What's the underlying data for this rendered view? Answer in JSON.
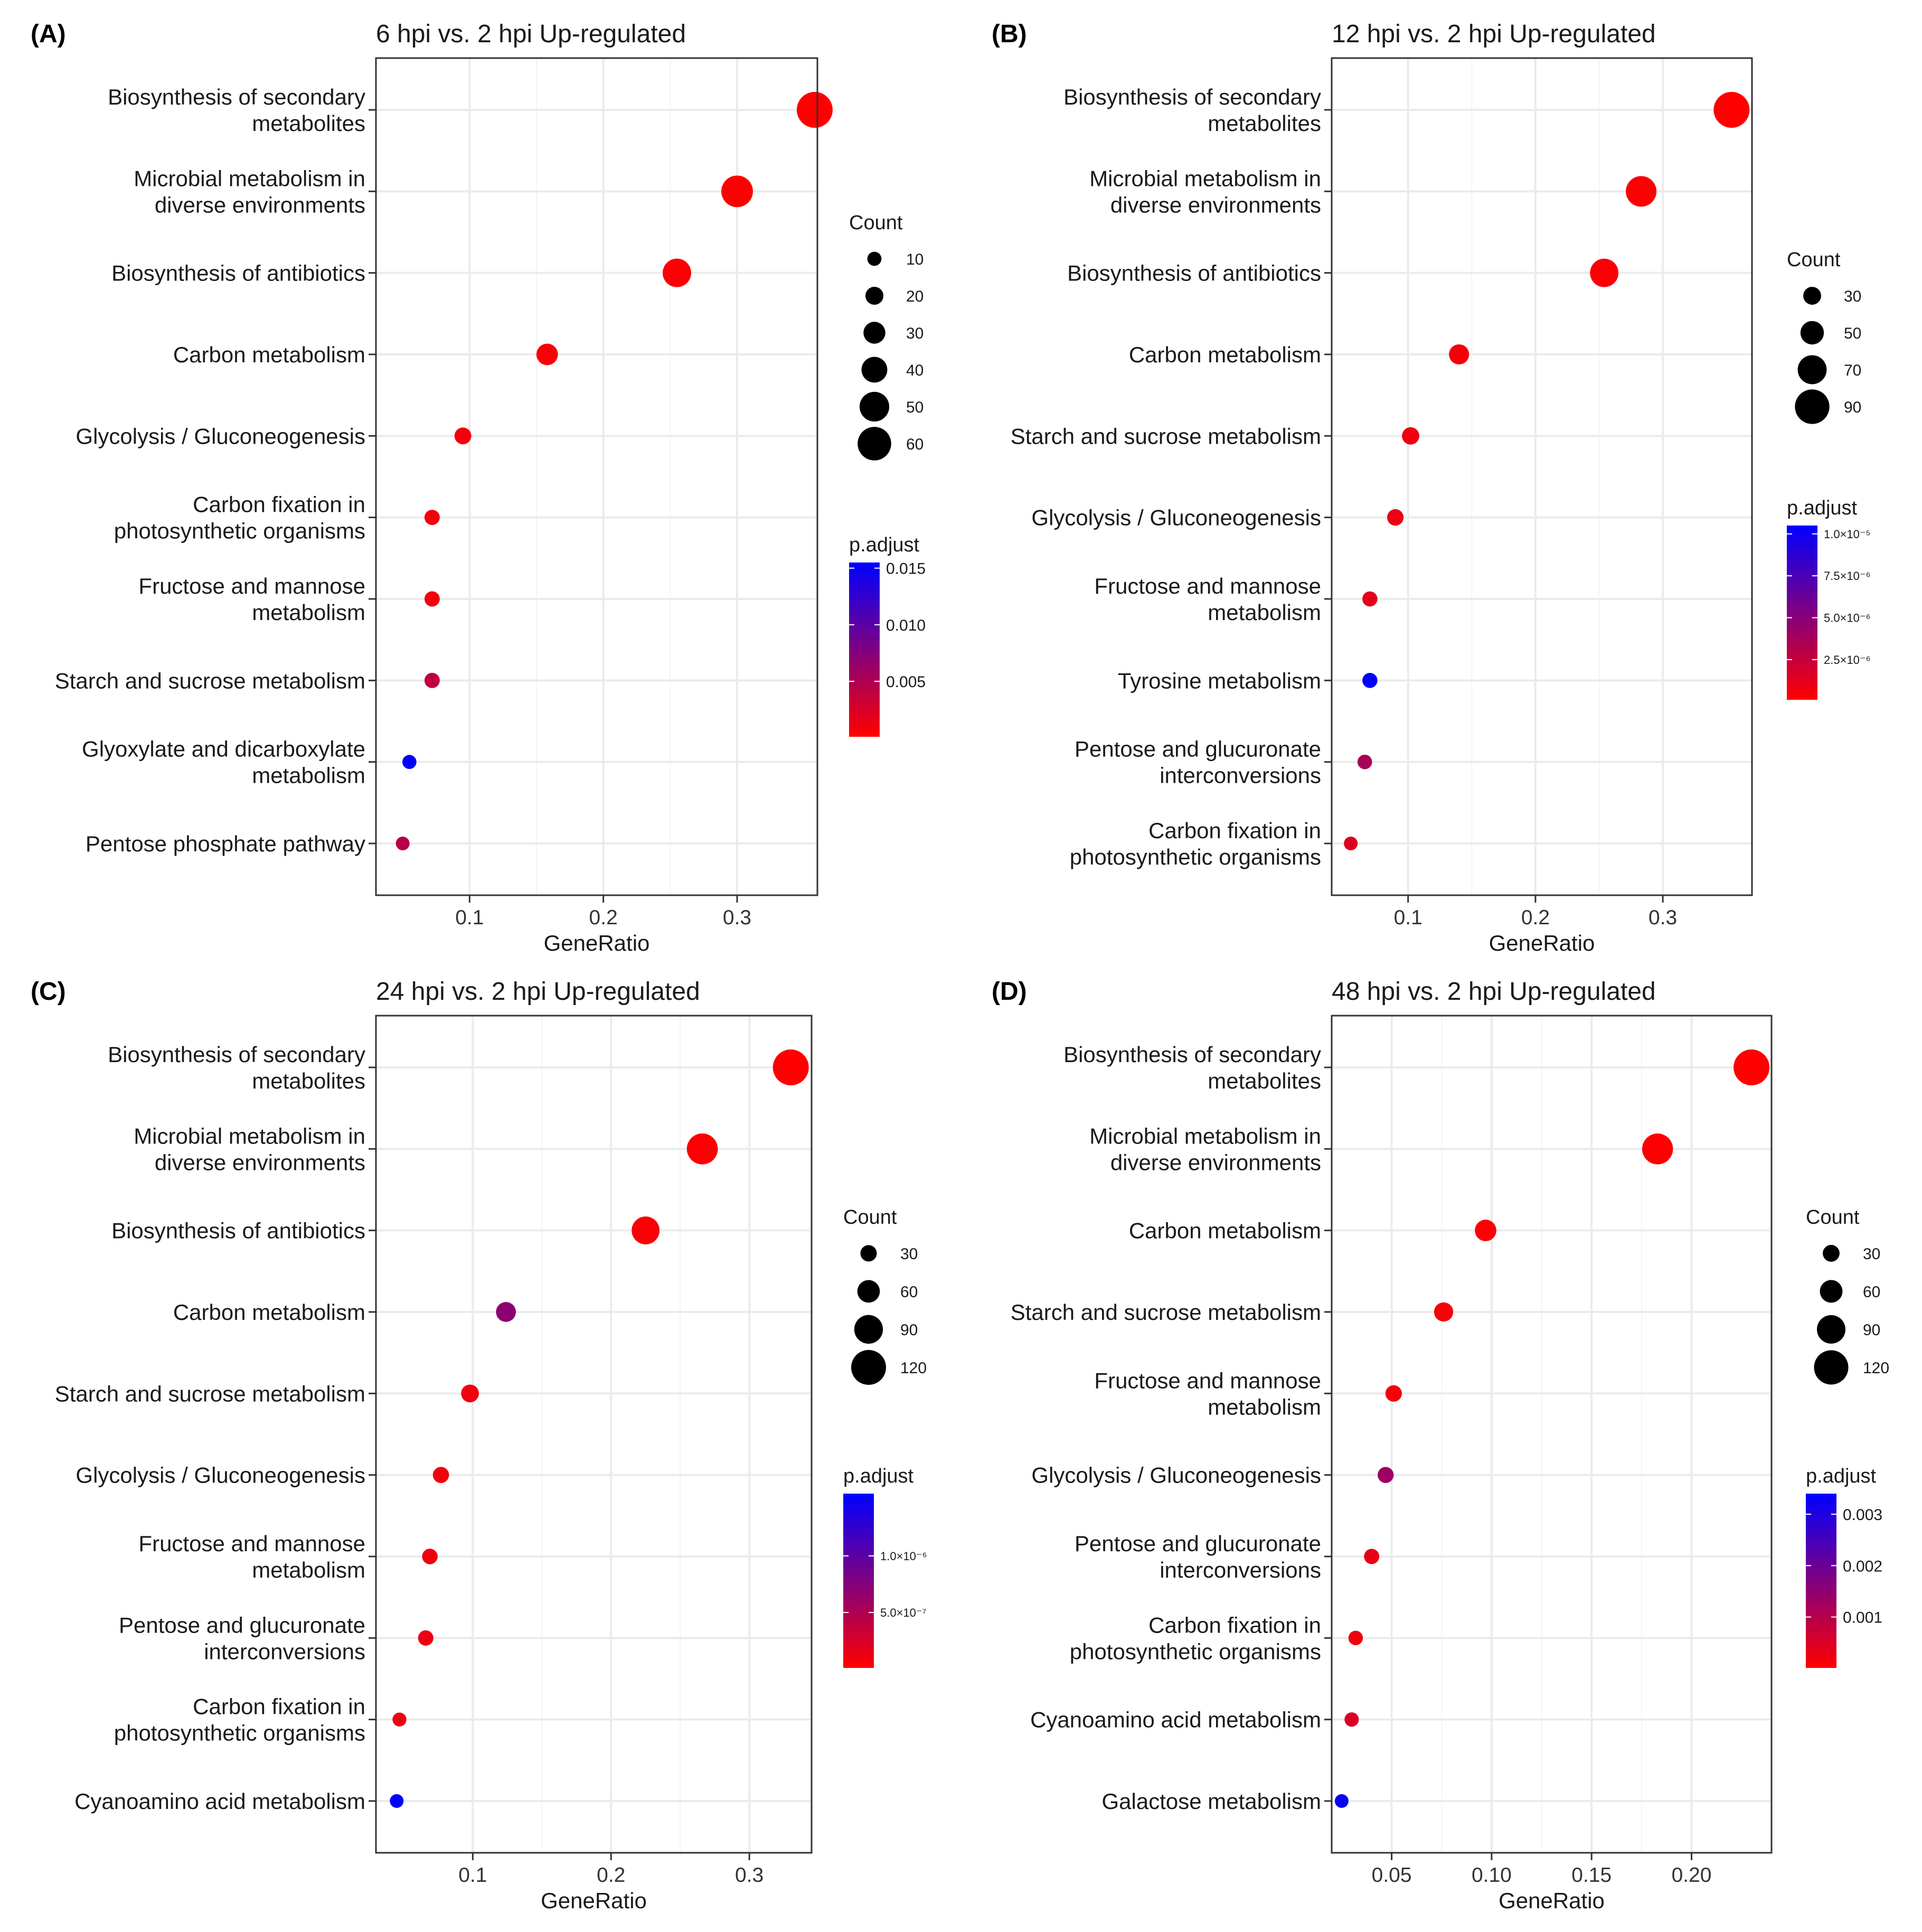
{
  "colors": {
    "low": "#ff0000",
    "high": "#0000ff",
    "grid": "#ebebeb",
    "border": "#333333"
  },
  "chart_data": [
    {
      "type": "scatter",
      "panel_label": "(A)",
      "title": "6 hpi vs. 2 hpi Up-regulated",
      "xlabel": "GeneRatio",
      "ylabel": "",
      "xlim": [
        0.03,
        0.36
      ],
      "xticks": [
        0.1,
        0.2,
        0.3
      ],
      "xtick_labels": [
        "0.1",
        "0.2",
        "0.3"
      ],
      "categories": [
        [
          "Biosynthesis of secondary",
          "metabolites"
        ],
        [
          "Microbial metabolism in",
          "diverse environments"
        ],
        [
          "Biosynthesis of antibiotics"
        ],
        [
          "Carbon metabolism"
        ],
        [
          "Glycolysis / Gluconeogenesis"
        ],
        [
          "Carbon fixation in",
          "photosynthetic organisms"
        ],
        [
          "Fructose and mannose",
          "metabolism"
        ],
        [
          "Starch and sucrose metabolism"
        ],
        [
          "Glyoxylate and dicarboxylate",
          "metabolism"
        ],
        [
          "Pentose phosphate pathway"
        ]
      ],
      "x": [
        0.358,
        0.3,
        0.255,
        0.158,
        0.095,
        0.072,
        0.072,
        0.072,
        0.055,
        0.05
      ],
      "count": [
        66,
        55,
        47,
        29,
        17,
        13,
        13,
        13,
        10,
        9
      ],
      "p_adjust": [
        0.0001,
        0.0002,
        0.0003,
        0.0004,
        0.0007,
        0.0008,
        0.0008,
        0.004,
        0.0155,
        0.0045
      ],
      "legend": {
        "size_title": "Count",
        "size_values": [
          10,
          20,
          30,
          40,
          50,
          60
        ],
        "size_labels": [
          "10",
          "20",
          "30",
          "40",
          "50",
          "60"
        ],
        "color_title": "p.adjust",
        "color_range": [
          0.0001,
          0.0155
        ],
        "color_ticks": [
          0.015,
          0.01,
          0.005
        ],
        "color_tick_labels": [
          "0.015",
          "0.010",
          "0.005"
        ]
      }
    },
    {
      "type": "scatter",
      "panel_label": "(B)",
      "title": "12 hpi vs. 2 hpi Up-regulated",
      "xlabel": "GeneRatio",
      "ylabel": "",
      "xlim": [
        0.04,
        0.37
      ],
      "xticks": [
        0.1,
        0.2,
        0.3
      ],
      "xtick_labels": [
        "0.1",
        "0.2",
        "0.3"
      ],
      "categories": [
        [
          "Biosynthesis of secondary",
          "metabolites"
        ],
        [
          "Microbial metabolism in",
          "diverse environments"
        ],
        [
          "Biosynthesis of antibiotics"
        ],
        [
          "Carbon metabolism"
        ],
        [
          "Starch and sucrose metabolism"
        ],
        [
          "Glycolysis / Gluconeogenesis"
        ],
        [
          "Fructose and mannose",
          "metabolism"
        ],
        [
          "Tyrosine metabolism"
        ],
        [
          "Pentose and glucuronate",
          "interconversions"
        ],
        [
          "Carbon fixation in",
          "photosynthetic organisms"
        ]
      ],
      "x": [
        0.354,
        0.283,
        0.254,
        0.14,
        0.102,
        0.09,
        0.07,
        0.07,
        0.066,
        0.055
      ],
      "count": [
        95,
        76,
        68,
        38,
        28,
        25,
        20,
        20,
        18,
        15
      ],
      "p_adjust": [
        1e-07,
        2e-07,
        3e-07,
        5e-07,
        8e-07,
        9e-07,
        1.2e-06,
        1.05e-05,
        3.7e-06,
        1.5e-06
      ],
      "legend": {
        "size_title": "Count",
        "size_values": [
          30,
          50,
          70,
          90
        ],
        "size_labels": [
          "30",
          "50",
          "70",
          "90"
        ],
        "color_title": "p.adjust",
        "color_range": [
          1e-07,
          1.05e-05
        ],
        "color_ticks": [
          1e-05,
          7.5e-06,
          5e-06,
          2.5e-06
        ],
        "color_tick_labels": [
          "1.0×10⁻⁵",
          "7.5×10⁻⁶",
          "5.0×10⁻⁶",
          "2.5×10⁻⁶"
        ]
      }
    },
    {
      "type": "scatter",
      "panel_label": "(C)",
      "title": "24 hpi vs. 2 hpi Up-regulated",
      "xlabel": "GeneRatio",
      "ylabel": "",
      "xlim": [
        0.03,
        0.345
      ],
      "xticks": [
        0.1,
        0.2,
        0.3
      ],
      "xtick_labels": [
        "0.1",
        "0.2",
        "0.3"
      ],
      "categories": [
        [
          "Biosynthesis of secondary",
          "metabolites"
        ],
        [
          "Microbial metabolism in",
          "diverse environments"
        ],
        [
          "Biosynthesis of antibiotics"
        ],
        [
          "Carbon metabolism"
        ],
        [
          "Starch and sucrose metabolism"
        ],
        [
          "Glycolysis / Gluconeogenesis"
        ],
        [
          "Fructose and mannose",
          "metabolism"
        ],
        [
          "Pentose and glucuronate",
          "interconversions"
        ],
        [
          "Carbon fixation in",
          "photosynthetic organisms"
        ],
        [
          "Cyanoamino acid metabolism"
        ]
      ],
      "x": [
        0.33,
        0.266,
        0.225,
        0.124,
        0.098,
        0.077,
        0.069,
        0.066,
        0.047,
        0.045
      ],
      "count": [
        125,
        101,
        86,
        47,
        37,
        29,
        26,
        25,
        18,
        17
      ],
      "p_adjust": [
        1e-08,
        2e-08,
        4e-08,
        7e-07,
        1e-07,
        8e-08,
        1e-07,
        1.2e-07,
        1e-07,
        1.55e-06
      ],
      "legend": {
        "size_title": "Count",
        "size_values": [
          30,
          60,
          90,
          120
        ],
        "size_labels": [
          "30",
          "60",
          "90",
          "120"
        ],
        "color_title": "p.adjust",
        "color_range": [
          1e-08,
          1.55e-06
        ],
        "color_ticks": [
          1e-06,
          5e-07
        ],
        "color_tick_labels": [
          "1.0×10⁻⁶",
          "5.0×10⁻⁷"
        ]
      }
    },
    {
      "type": "scatter",
      "panel_label": "(D)",
      "title": "48 hpi vs. 2 hpi Up-regulated",
      "xlabel": "GeneRatio",
      "ylabel": "",
      "xlim": [
        0.02,
        0.24
      ],
      "xticks": [
        0.05,
        0.1,
        0.15,
        0.2
      ],
      "xtick_labels": [
        "0.05",
        "0.10",
        "0.15",
        "0.20"
      ],
      "categories": [
        [
          "Biosynthesis of secondary",
          "metabolites"
        ],
        [
          "Microbial metabolism in",
          "diverse environments"
        ],
        [
          "Carbon metabolism"
        ],
        [
          "Starch and sucrose metabolism"
        ],
        [
          "Fructose and mannose",
          "metabolism"
        ],
        [
          "Glycolysis / Gluconeogenesis"
        ],
        [
          "Pentose and glucuronate",
          "interconversions"
        ],
        [
          "Carbon fixation in",
          "photosynthetic organisms"
        ],
        [
          "Cyanoamino acid metabolism"
        ],
        [
          "Galactose metabolism"
        ]
      ],
      "x": [
        0.23,
        0.183,
        0.097,
        0.076,
        0.051,
        0.047,
        0.04,
        0.032,
        0.03,
        0.025
      ],
      "count": [
        128,
        102,
        54,
        42,
        28,
        26,
        22,
        18,
        17,
        14
      ],
      "p_adjust": [
        1e-05,
        2e-05,
        5e-05,
        0.0001,
        0.0001,
        0.0013,
        0.0003,
        0.0002,
        0.0005,
        0.0033
      ],
      "legend": {
        "size_title": "Count",
        "size_values": [
          30,
          60,
          90,
          120
        ],
        "size_labels": [
          "30",
          "60",
          "90",
          "120"
        ],
        "color_title": "p.adjust",
        "color_range": [
          1e-05,
          0.0034
        ],
        "color_ticks": [
          0.003,
          0.002,
          0.001
        ],
        "color_tick_labels": [
          "0.003",
          "0.002",
          "0.001"
        ]
      }
    }
  ]
}
